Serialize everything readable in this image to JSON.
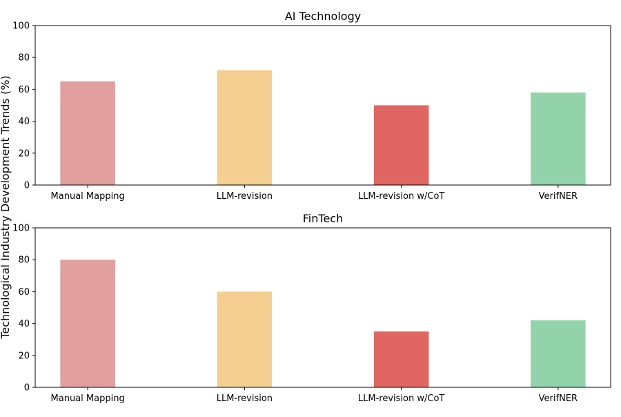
{
  "figure": {
    "ylabel": "Technological Industry Development Trends (%)"
  },
  "chart_data": [
    {
      "type": "bar",
      "title": "AI Technology",
      "categories": [
        "Manual Mapping",
        "LLM-revision",
        "LLM-revision w/CoT",
        "VerifNER"
      ],
      "values": [
        65,
        72,
        50,
        58
      ],
      "colors": [
        "#e19f9e",
        "#f5cf91",
        "#df6662",
        "#93d3ac"
      ],
      "ylim": [
        0,
        100
      ],
      "yticks": [
        0,
        20,
        40,
        60,
        80,
        100
      ],
      "grid": false
    },
    {
      "type": "bar",
      "title": "FinTech",
      "categories": [
        "Manual Mapping",
        "LLM-revision",
        "LLM-revision w/CoT",
        "VerifNER"
      ],
      "values": [
        80,
        60,
        35,
        42
      ],
      "colors": [
        "#e19f9e",
        "#f5cf91",
        "#df6662",
        "#93d3ac"
      ],
      "ylim": [
        0,
        100
      ],
      "yticks": [
        0,
        20,
        40,
        60,
        80,
        100
      ],
      "grid": false
    }
  ]
}
